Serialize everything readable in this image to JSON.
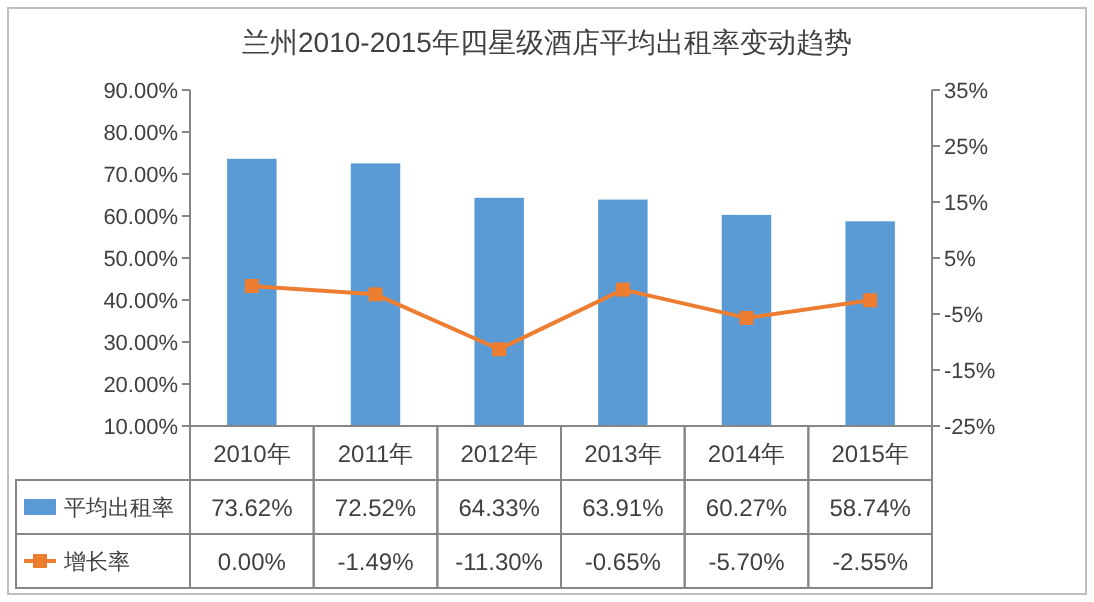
{
  "chart_data": {
    "type": "bar",
    "title": "兰州2010-2015年四星级酒店平均出租率变动趋势",
    "categories": [
      "2010年",
      "2011年",
      "2012年",
      "2013年",
      "2014年",
      "2015年"
    ],
    "series": [
      {
        "name": "平均出租率",
        "color": "#5b9bd5",
        "values": [
          73.62,
          72.52,
          64.33,
          63.91,
          60.27,
          58.74
        ],
        "value_labels": [
          "73.62%",
          "72.52%",
          "64.33%",
          "63.91%",
          "60.27%",
          "58.74%"
        ]
      },
      {
        "name": "增长率",
        "type": "line",
        "axis": "y2",
        "marker": "square",
        "color": "#ed7d31",
        "values": [
          0.0,
          -1.49,
          -11.3,
          -0.65,
          -5.7,
          -2.55
        ],
        "value_labels": [
          "0.00%",
          "-1.49%",
          "-11.30%",
          "-0.65%",
          "-5.70%",
          "-2.55%"
        ]
      }
    ],
    "ylim": [
      10,
      90
    ],
    "yticks": [
      {
        "value": 10,
        "label": "10.00%"
      },
      {
        "value": 20,
        "label": "20.00%"
      },
      {
        "value": 30,
        "label": "30.00%"
      },
      {
        "value": 40,
        "label": "40.00%"
      },
      {
        "value": 50,
        "label": "50.00%"
      },
      {
        "value": 60,
        "label": "60.00%"
      },
      {
        "value": 70,
        "label": "70.00%"
      },
      {
        "value": 80,
        "label": "80.00%"
      },
      {
        "value": 90,
        "label": "90.00%"
      }
    ],
    "y2lim": [
      -25,
      35
    ],
    "y2ticks": [
      {
        "value": -25,
        "label": "-25%"
      },
      {
        "value": -15,
        "label": "-15%"
      },
      {
        "value": -5,
        "label": "-5%"
      },
      {
        "value": 5,
        "label": "5%"
      },
      {
        "value": 15,
        "label": "15%"
      },
      {
        "value": 25,
        "label": "25%"
      },
      {
        "value": 35,
        "label": "35%"
      }
    ],
    "legend": "bottom",
    "grid": false
  }
}
